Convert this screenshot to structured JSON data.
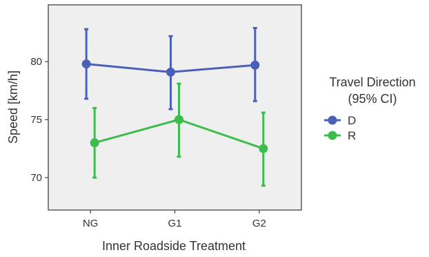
{
  "chart_data": {
    "type": "line",
    "categories": [
      "NG",
      "G1",
      "G2"
    ],
    "xlabel": "Inner Roadside Treatment",
    "ylabel": "Speed [km/h]",
    "ylim": [
      67.2,
      84.9
    ],
    "yticks": [
      70,
      75,
      80
    ],
    "grid": false,
    "legend": {
      "title_line1": "Travel Direction",
      "title_line2": "(95% CI)",
      "placement": "right"
    },
    "series": [
      {
        "name": "D",
        "color": "#4a60b8",
        "values": [
          79.8,
          79.1,
          79.7
        ],
        "ci_low": [
          76.8,
          75.9,
          76.6
        ],
        "ci_high": [
          82.8,
          82.2,
          82.9
        ]
      },
      {
        "name": "R",
        "color": "#3cbc4b",
        "values": [
          73.0,
          75.0,
          72.5
        ],
        "ci_low": [
          70.0,
          71.8,
          69.3
        ],
        "ci_high": [
          76.0,
          78.1,
          75.6
        ]
      }
    ]
  }
}
